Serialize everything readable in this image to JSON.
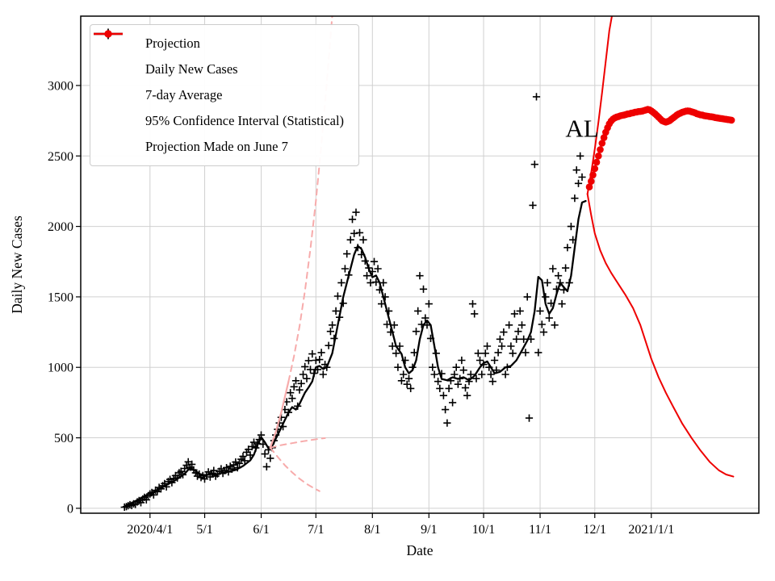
{
  "chart_data": {
    "type": "scatter",
    "title": "",
    "xlabel": "Date",
    "ylabel": "Daily New Cases",
    "grid": true,
    "annotation": {
      "text": "AL",
      "day": 268,
      "value": 2700
    },
    "x_axis": {
      "unit": "days since 2020-03-01",
      "range": [
        -7,
        365
      ],
      "ticks": [
        {
          "day": 31,
          "label": "2020/4/1"
        },
        {
          "day": 61,
          "label": "5/1"
        },
        {
          "day": 92,
          "label": "6/1"
        },
        {
          "day": 122,
          "label": "7/1"
        },
        {
          "day": 153,
          "label": "8/1"
        },
        {
          "day": 184,
          "label": "9/1"
        },
        {
          "day": 214,
          "label": "10/1"
        },
        {
          "day": 245,
          "label": "11/1"
        },
        {
          "day": 275,
          "label": "12/1"
        },
        {
          "day": 306,
          "label": "2021/1/1"
        }
      ]
    },
    "y_axis": {
      "range": [
        -35,
        3492
      ],
      "ticks": [
        0,
        500,
        1000,
        1500,
        2000,
        2500,
        3000
      ]
    },
    "legend": {
      "position": "upper left",
      "entries": [
        {
          "label": "Projection",
          "marker": "dot",
          "color": "#ee0000"
        },
        {
          "label": "Daily New Cases",
          "marker": "plus",
          "color": "#000000"
        },
        {
          "label": "7-day Average",
          "marker": "line",
          "color": "#000000"
        },
        {
          "label": "95% Confidence Interval (Statistical)",
          "marker": "dot",
          "color": "#ee0000"
        },
        {
          "label": "Projection Made on June 7",
          "marker": "line",
          "color": "#ee0000"
        }
      ]
    },
    "series": [
      {
        "name": "Daily New Cases",
        "kind": "scatter-plus",
        "color": "#000000",
        "width": 1.6,
        "start_day": 17,
        "values": [
          8,
          12,
          18,
          25,
          20,
          32,
          28,
          45,
          55,
          40,
          65,
          78,
          60,
          88,
          102,
          112,
          95,
          128,
          118,
          148,
          138,
          160,
          175,
          152,
          190,
          205,
          182,
          212,
          232,
          215,
          252,
          262,
          238,
          282,
          305,
          330,
          292,
          312,
          272,
          252,
          228,
          242,
          218,
          232,
          208,
          238,
          258,
          222,
          248,
          268,
          228,
          244,
          262,
          280,
          248,
          268,
          288,
          258,
          298,
          278,
          308,
          328,
          288,
          318,
          348,
          368,
          338,
          398,
          418,
          378,
          438,
          468,
          428,
          458,
          488,
          520,
          455,
          385,
          295,
          415,
          355,
          430,
          480,
          520,
          560,
          605,
          645,
          580,
          700,
          755,
          680,
          820,
          780,
          862,
          905,
          725,
          840,
          885,
          950,
          1005,
          920,
          1048,
          985,
          1095,
          958,
          1050,
          985,
          1055,
          1105,
          950,
          1020,
          1000,
          1155,
          1255,
          1300,
          1205,
          1400,
          1505,
          1355,
          1600,
          1455,
          1700,
          1805,
          1655,
          1905,
          2050,
          1950,
          2100,
          1850,
          1955,
          1800,
          1905,
          1755,
          1650,
          1705,
          1600,
          1680,
          1750,
          1605,
          1700,
          1550,
          1450,
          1600,
          1500,
          1305,
          1400,
          1250,
          1150,
          1300,
          1100,
          1000,
          1150,
          905,
          950,
          1050,
          880,
          920,
          850,
          1000,
          1105,
          1255,
          1400,
          1650,
          1305,
          1555,
          1350,
          1300,
          1450,
          1205,
          1000,
          950,
          1100,
          900,
          850,
          955,
          800,
          700,
          605,
          850,
          905,
          750,
          950,
          1000,
          880,
          920,
          1050,
          980,
          855,
          800,
          900,
          950,
          1450,
          1380,
          920,
          1100,
          1050,
          950,
          1020,
          1100,
          1150,
          1000,
          950,
          900,
          1050,
          980,
          1105,
          1200,
          1150,
          1250,
          950,
          1000,
          1300,
          1150,
          1100,
          1380,
          1200,
          1255,
          1400,
          1300,
          1200,
          1105,
          1500,
          640,
          1200,
          2150,
          2440,
          2920,
          1105,
          1400,
          1305,
          1250,
          1500,
          1600,
          1350,
          1455,
          1700,
          1300,
          1555,
          1650,
          1600,
          1450,
          1550,
          1705,
          1850,
          1600,
          2000,
          1905,
          2200,
          2400,
          2305,
          2500,
          2350
        ]
      },
      {
        "name": "7-day Average",
        "kind": "line",
        "color": "#000000",
        "width": 2.3,
        "points": [
          [
            18,
            25
          ],
          [
            21,
            38
          ],
          [
            24,
            58
          ],
          [
            27,
            80
          ],
          [
            31,
            105
          ],
          [
            35,
            130
          ],
          [
            40,
            165
          ],
          [
            45,
            200
          ],
          [
            50,
            245
          ],
          [
            53,
            288
          ],
          [
            56,
            265
          ],
          [
            59,
            238
          ],
          [
            61,
            228
          ],
          [
            64,
            245
          ],
          [
            67,
            236
          ],
          [
            70,
            250
          ],
          [
            74,
            260
          ],
          [
            78,
            272
          ],
          [
            82,
            300
          ],
          [
            86,
            340
          ],
          [
            88,
            380
          ],
          [
            90,
            450
          ],
          [
            92,
            505
          ],
          [
            94,
            468
          ],
          [
            96,
            425
          ],
          [
            98,
            442
          ],
          [
            101,
            520
          ],
          [
            104,
            600
          ],
          [
            107,
            680
          ],
          [
            109,
            718
          ],
          [
            111,
            700
          ],
          [
            113,
            740
          ],
          [
            116,
            820
          ],
          [
            118,
            858
          ],
          [
            120,
            900
          ],
          [
            122,
            1000
          ],
          [
            124,
            1010
          ],
          [
            126,
            988
          ],
          [
            128,
            1002
          ],
          [
            131,
            1100
          ],
          [
            134,
            1300
          ],
          [
            137,
            1500
          ],
          [
            140,
            1650
          ],
          [
            143,
            1800
          ],
          [
            145,
            1862
          ],
          [
            147,
            1840
          ],
          [
            149,
            1780
          ],
          [
            151,
            1700
          ],
          [
            153,
            1640
          ],
          [
            155,
            1652
          ],
          [
            157,
            1600
          ],
          [
            160,
            1450
          ],
          [
            163,
            1300
          ],
          [
            166,
            1150
          ],
          [
            169,
            1095
          ],
          [
            171,
            1000
          ],
          [
            173,
            958
          ],
          [
            175,
            980
          ],
          [
            177,
            1050
          ],
          [
            179,
            1200
          ],
          [
            181,
            1300
          ],
          [
            183,
            1332
          ],
          [
            185,
            1300
          ],
          [
            187,
            1150
          ],
          [
            189,
            1000
          ],
          [
            191,
            918
          ],
          [
            194,
            908
          ],
          [
            197,
            930
          ],
          [
            200,
            918
          ],
          [
            203,
            930
          ],
          [
            206,
            908
          ],
          [
            209,
            940
          ],
          [
            212,
            1000
          ],
          [
            214,
            1030
          ],
          [
            216,
            1042
          ],
          [
            218,
            1000
          ],
          [
            220,
            958
          ],
          [
            223,
            968
          ],
          [
            226,
            1000
          ],
          [
            229,
            1010
          ],
          [
            232,
            1050
          ],
          [
            235,
            1120
          ],
          [
            238,
            1190
          ],
          [
            240,
            1250
          ],
          [
            242,
            1400
          ],
          [
            244,
            1642
          ],
          [
            246,
            1618
          ],
          [
            248,
            1450
          ],
          [
            250,
            1380
          ],
          [
            252,
            1420
          ],
          [
            254,
            1520
          ],
          [
            256,
            1600
          ],
          [
            258,
            1568
          ],
          [
            260,
            1540
          ],
          [
            262,
            1650
          ],
          [
            264,
            1850
          ],
          [
            266,
            2050
          ],
          [
            268,
            2170
          ],
          [
            270,
            2180
          ]
        ]
      },
      {
        "name": "Projection",
        "kind": "scatter-dot",
        "color": "#ee0000",
        "width": 4.3,
        "start_day": 272,
        "values": [
          2280,
          2320,
          2365,
          2410,
          2455,
          2500,
          2545,
          2590,
          2630,
          2668,
          2700,
          2728,
          2748,
          2762,
          2770,
          2776,
          2780,
          2785,
          2788,
          2790,
          2794,
          2798,
          2800,
          2804,
          2806,
          2810,
          2812,
          2815,
          2816,
          2818,
          2822,
          2826,
          2830,
          2828,
          2820,
          2810,
          2800,
          2788,
          2775,
          2762,
          2750,
          2744,
          2740,
          2744,
          2750,
          2760,
          2770,
          2780,
          2790,
          2798,
          2804,
          2810,
          2814,
          2818,
          2820,
          2818,
          2814,
          2810,
          2806,
          2800,
          2796,
          2792,
          2790,
          2786,
          2784,
          2782,
          2780,
          2778,
          2776,
          2772,
          2770,
          2768,
          2766,
          2764,
          2762,
          2760,
          2758,
          2756,
          2754
        ]
      },
      {
        "name": "95% CI upper bound",
        "kind": "line",
        "color": "#ee0000",
        "width": 2,
        "points": [
          [
            271,
            2230
          ],
          [
            273,
            2380
          ],
          [
            275,
            2550
          ],
          [
            277,
            2740
          ],
          [
            279,
            2950
          ],
          [
            281,
            3170
          ],
          [
            283,
            3390
          ],
          [
            284.5,
            3500
          ]
        ]
      },
      {
        "name": "95% CI lower bound",
        "kind": "line",
        "color": "#ee0000",
        "width": 2,
        "points": [
          [
            271,
            2230
          ],
          [
            273,
            2080
          ],
          [
            275,
            1950
          ],
          [
            278,
            1830
          ],
          [
            281,
            1740
          ],
          [
            284,
            1670
          ],
          [
            288,
            1590
          ],
          [
            292,
            1510
          ],
          [
            296,
            1420
          ],
          [
            300,
            1300
          ],
          [
            303,
            1180
          ],
          [
            306,
            1060
          ],
          [
            310,
            930
          ],
          [
            314,
            820
          ],
          [
            318,
            720
          ],
          [
            323,
            600
          ],
          [
            328,
            500
          ],
          [
            333,
            410
          ],
          [
            338,
            330
          ],
          [
            343,
            270
          ],
          [
            347,
            240
          ],
          [
            351,
            225
          ]
        ]
      },
      {
        "name": "Projection Made on June 7",
        "kind": "line",
        "color": "#f7abab",
        "width": 2.2,
        "points": [
          [
            97,
            430
          ],
          [
            100,
            540
          ],
          [
            103,
            680
          ],
          [
            105,
            790
          ],
          [
            107,
            900
          ]
        ]
      },
      {
        "name": "June 7 CI upper",
        "kind": "dashed-line",
        "color": "#f7abab",
        "width": 2,
        "points": [
          [
            107,
            900
          ],
          [
            110,
            1080
          ],
          [
            113,
            1290
          ],
          [
            116,
            1540
          ],
          [
            119,
            1840
          ],
          [
            122,
            2180
          ],
          [
            125,
            2580
          ],
          [
            127,
            2870
          ],
          [
            129,
            3180
          ],
          [
            131,
            3500
          ]
        ]
      },
      {
        "name": "June 7 CI middle",
        "kind": "dashed-line",
        "color": "#f7abab",
        "width": 2,
        "points": [
          [
            97,
            430
          ],
          [
            103,
            448
          ],
          [
            109,
            462
          ],
          [
            115,
            476
          ],
          [
            121,
            488
          ],
          [
            127,
            498
          ]
        ]
      },
      {
        "name": "June 7 CI lower",
        "kind": "dashed-line",
        "color": "#f7abab",
        "width": 2,
        "points": [
          [
            97,
            430
          ],
          [
            101,
            365
          ],
          [
            105,
            305
          ],
          [
            109,
            255
          ],
          [
            113,
            210
          ],
          [
            117,
            172
          ],
          [
            121,
            142
          ],
          [
            124,
            122
          ]
        ]
      }
    ]
  }
}
